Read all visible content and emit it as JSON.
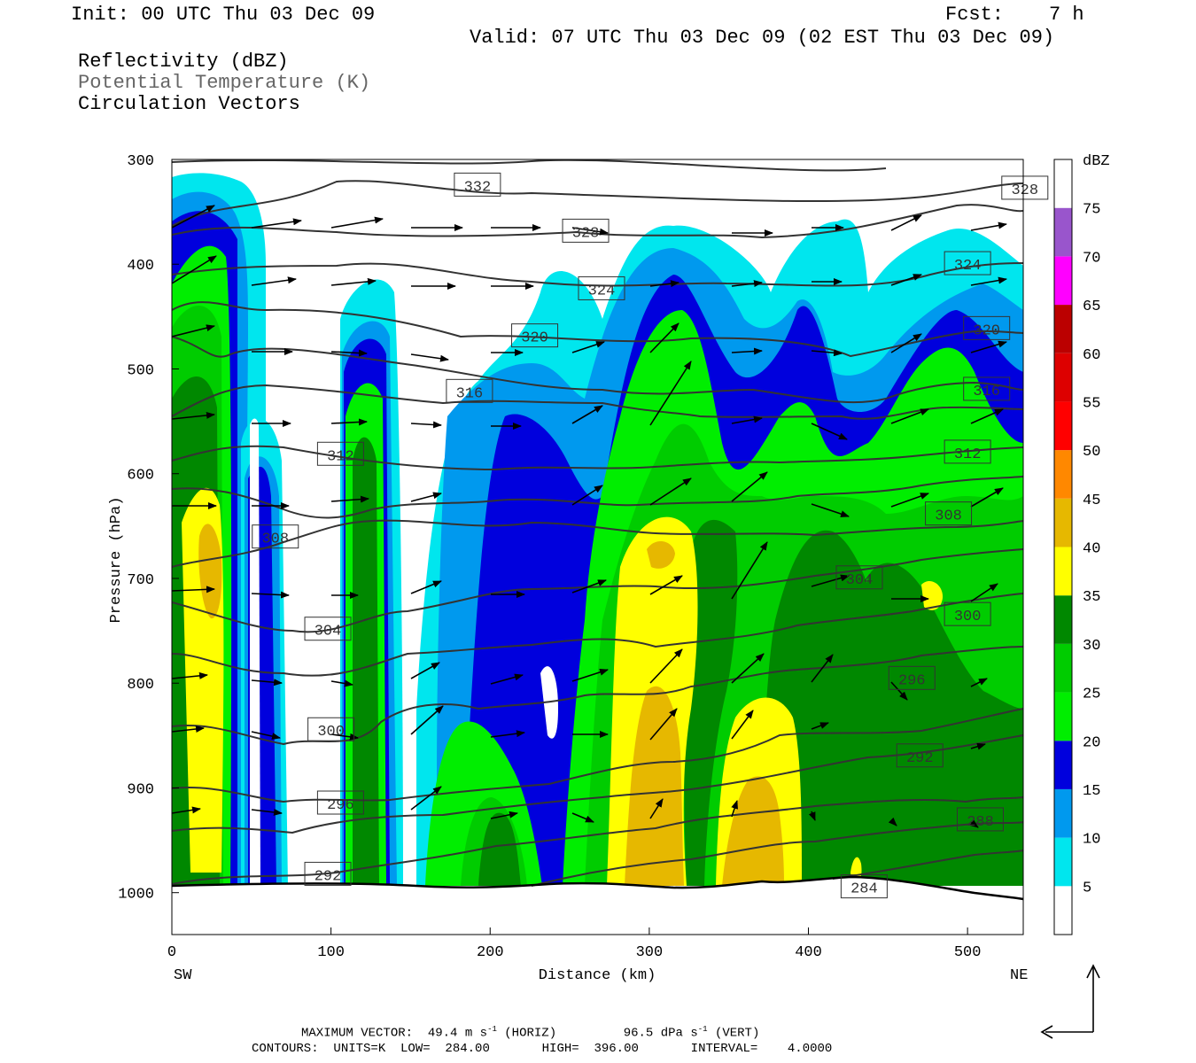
{
  "header": {
    "init": "Init: 00 UTC Thu 03 Dec 09",
    "fcst_label": "Fcst:",
    "fcst_value": "7 h",
    "valid": "Valid: 07 UTC Thu 03 Dec 09 (02 EST Thu 03 Dec 09)",
    "field1": "Reflectivity (dBZ)",
    "field2": "Potential Temperature (K)",
    "field3": "Circulation Vectors"
  },
  "footer": {
    "max_vector_label": "MAXIMUM VECTOR:",
    "max_h": "49.4 m s",
    "max_h_sup": "-1",
    "max_h_tail": "(HORIZ)",
    "max_v": "96.5 dPa s",
    "max_v_sup": "-1",
    "max_v_tail": "(VERT)",
    "contours": "CONTOURS:  UNITS=K  LOW=  284.00       HIGH=  396.00       INTERVAL=    4.0000"
  },
  "colors": {
    "scale": [
      "#ffffff",
      "#00e6ee",
      "#0099ee",
      "#0000dd",
      "#00ee00",
      "#00cc00",
      "#008800",
      "#ffff00",
      "#e6b800",
      "#ff8800",
      "#ff0000",
      "#dd0000",
      "#bb0000",
      "#ff00ff",
      "#9955cc",
      "#ffffff"
    ],
    "contour": "#333333"
  },
  "chart_data": {
    "type": "heatmap",
    "title": "Reflectivity (dBZ)",
    "xlabel": "Distance (km)",
    "ylabel": "Pressure (hPa)",
    "xlim": [
      0,
      535
    ],
    "ylim": [
      1040,
      300
    ],
    "xticks": [
      "0",
      "100",
      "200",
      "300",
      "400",
      "500"
    ],
    "yticks": [
      "300",
      "400",
      "500",
      "600",
      "700",
      "800",
      "900",
      "1000"
    ],
    "x_endpoints": [
      "SW",
      "NE"
    ],
    "colorbar": {
      "label": "dBZ",
      "ticks": [
        "5",
        "10",
        "15",
        "20",
        "25",
        "30",
        "35",
        "40",
        "45",
        "50",
        "55",
        "60",
        "65",
        "70",
        "75"
      ]
    },
    "theta_contour_labels": [
      {
        "value": "332",
        "x": 192,
        "p": 324
      },
      {
        "value": "328",
        "x": 536,
        "p": 327
      },
      {
        "value": "328",
        "x": 260,
        "p": 368
      },
      {
        "value": "324",
        "x": 500,
        "p": 399
      },
      {
        "value": "324",
        "x": 270,
        "p": 423
      },
      {
        "value": "320",
        "x": 228,
        "p": 468
      },
      {
        "value": "320",
        "x": 512,
        "p": 461
      },
      {
        "value": "316",
        "x": 187,
        "p": 521
      },
      {
        "value": "316",
        "x": 512,
        "p": 519
      },
      {
        "value": "312",
        "x": 106,
        "p": 581
      },
      {
        "value": "312",
        "x": 500,
        "p": 579
      },
      {
        "value": "308",
        "x": 65,
        "p": 660
      },
      {
        "value": "308",
        "x": 488,
        "p": 638
      },
      {
        "value": "304",
        "x": 98,
        "p": 748
      },
      {
        "value": "304",
        "x": 432,
        "p": 699
      },
      {
        "value": "300",
        "x": 100,
        "p": 844
      },
      {
        "value": "300",
        "x": 500,
        "p": 734
      },
      {
        "value": "296",
        "x": 106,
        "p": 914
      },
      {
        "value": "296",
        "x": 465,
        "p": 795
      },
      {
        "value": "292",
        "x": 98,
        "p": 982
      },
      {
        "value": "292",
        "x": 470,
        "p": 869
      },
      {
        "value": "288",
        "x": 508,
        "p": 930
      },
      {
        "value": "284",
        "x": 435,
        "p": 994
      }
    ]
  }
}
